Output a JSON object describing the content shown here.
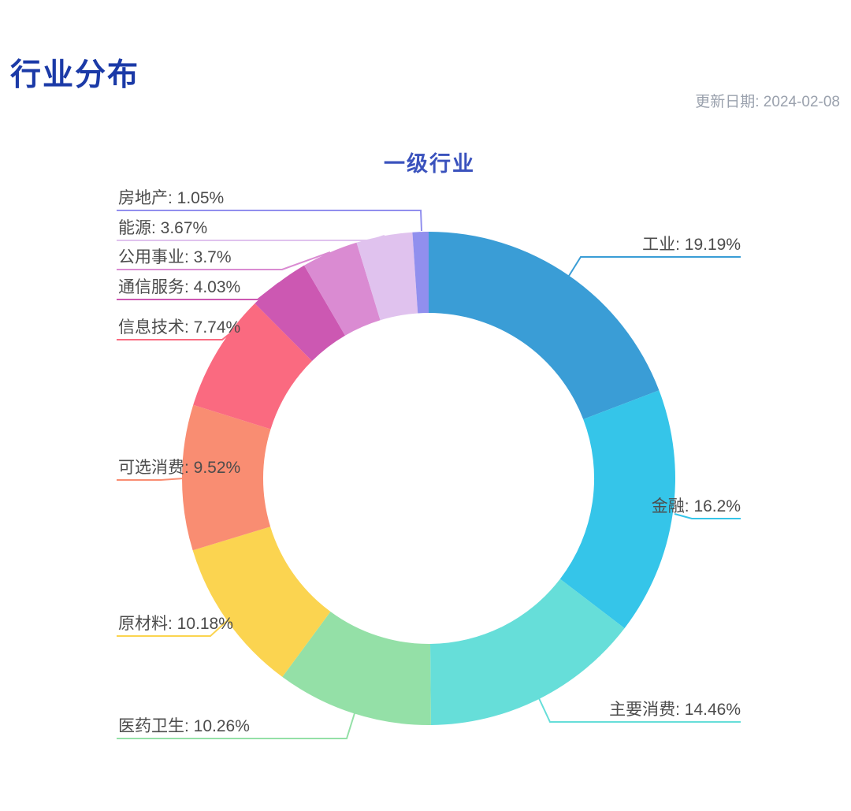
{
  "page": {
    "title": "行业分布",
    "update_date": "更新日期: 2024-02-08"
  },
  "colors": {
    "page_title": "#1B3AA7",
    "update_date_text": "#9AA1AD",
    "chart_title": "#3A52BD",
    "label_text": "#4C4C4C",
    "background": "#FFFFFF"
  },
  "chart_data": {
    "type": "pie",
    "subtype": "donut",
    "title": "一级行业",
    "unit": "%",
    "start_angle_deg": 90,
    "clockwise": true,
    "sorted": "descending",
    "inner_radius_ratio": 0.67,
    "legend": "none",
    "label_format": "{name}: {value}%",
    "label_text_color": "#4C4C4C",
    "series": [
      {
        "name": "工业",
        "value": 19.19,
        "color": "#3A9DD6"
      },
      {
        "name": "金融",
        "value": 16.2,
        "color": "#35C5E9"
      },
      {
        "name": "主要消费",
        "value": 14.46,
        "color": "#66DED9"
      },
      {
        "name": "医药卫生",
        "value": 10.26,
        "color": "#94E0A7"
      },
      {
        "name": "原材料",
        "value": 10.18,
        "color": "#FBD450"
      },
      {
        "name": "可选消费",
        "value": 9.52,
        "color": "#F98D72"
      },
      {
        "name": "信息技术",
        "value": 7.74,
        "color": "#FA6A80"
      },
      {
        "name": "通信服务",
        "value": 4.03,
        "color": "#CC58B2"
      },
      {
        "name": "公用事业",
        "value": 3.7,
        "color": "#DA8BD2"
      },
      {
        "name": "能源",
        "value": 3.67,
        "color": "#E0C2EE"
      },
      {
        "name": "房地产",
        "value": 1.05,
        "color": "#918FEE"
      }
    ]
  }
}
